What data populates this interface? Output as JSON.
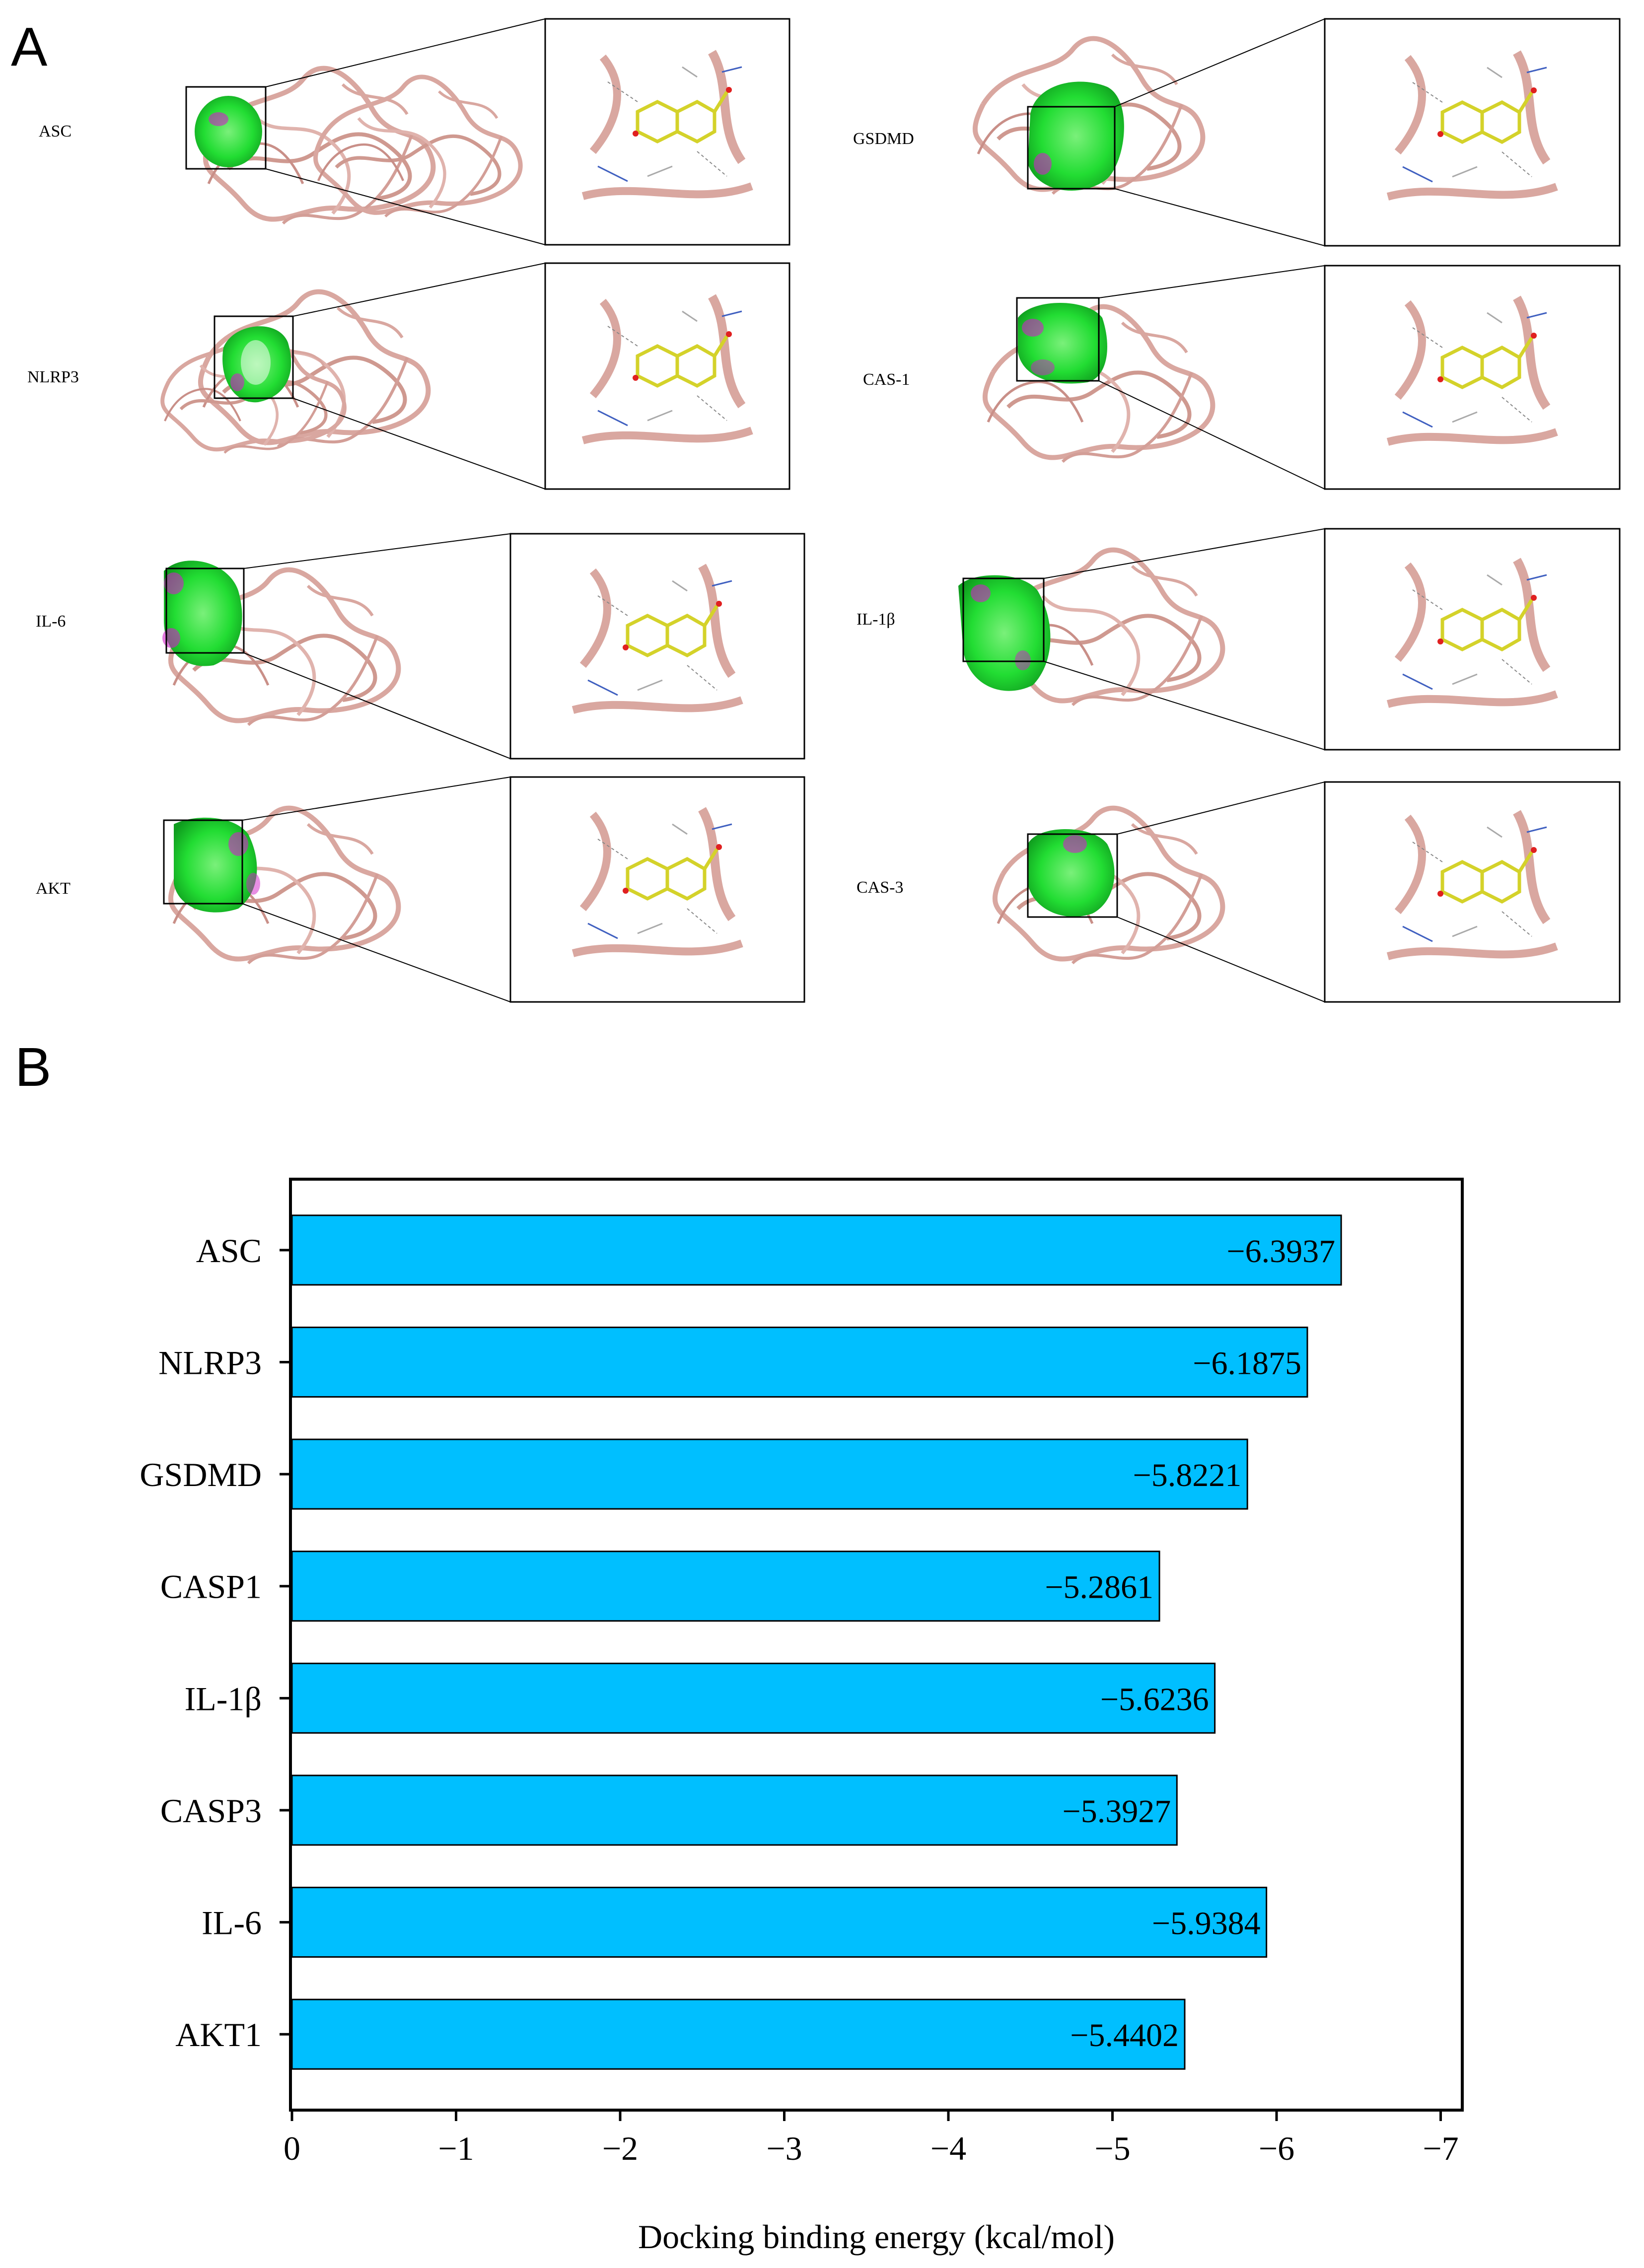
{
  "panel_a": {
    "letter": "A",
    "proteins": [
      {
        "label": "ASC"
      },
      {
        "label": "NLRP3"
      },
      {
        "label": "IL-6"
      },
      {
        "label": "AKT"
      },
      {
        "label": "GSDMD"
      },
      {
        "label": "CAS-1"
      },
      {
        "label": "IL-1β"
      },
      {
        "label": "CAS-3"
      }
    ],
    "colors": {
      "ribbon": "#d9a7a0",
      "surface": "#22dd33",
      "surface_accent": "#d020c8",
      "ligand": "#d4d22a"
    }
  },
  "panel_b": {
    "letter": "B"
  },
  "chart_data": {
    "type": "bar",
    "orientation": "horizontal",
    "categories": [
      "ASC",
      "NLRP3",
      "GSDMD",
      "CASP1",
      "IL-1β",
      "CASP3",
      "IL-6",
      "AKT1"
    ],
    "values": [
      -6.3937,
      -6.1875,
      -5.8221,
      -5.2861,
      -5.6236,
      -5.3927,
      -5.9384,
      -5.4402
    ],
    "data_labels": [
      "−6.3937",
      "−6.1875",
      "−5.8221",
      "−5.2861",
      "−5.6236",
      "−5.3927",
      "−5.9384",
      "−5.4402"
    ],
    "xlabel": "Docking binding energy (kcal/mol)",
    "ylabel": "",
    "xlim": [
      0,
      -7
    ],
    "xticks": [
      0,
      -1,
      -2,
      -3,
      -4,
      -5,
      -6,
      -7
    ],
    "xtick_labels": [
      "0",
      "−1",
      "−2",
      "−3",
      "−4",
      "−5",
      "−6",
      "−7"
    ],
    "bar_color": "#00bfff",
    "grid": false,
    "legend": "none"
  }
}
